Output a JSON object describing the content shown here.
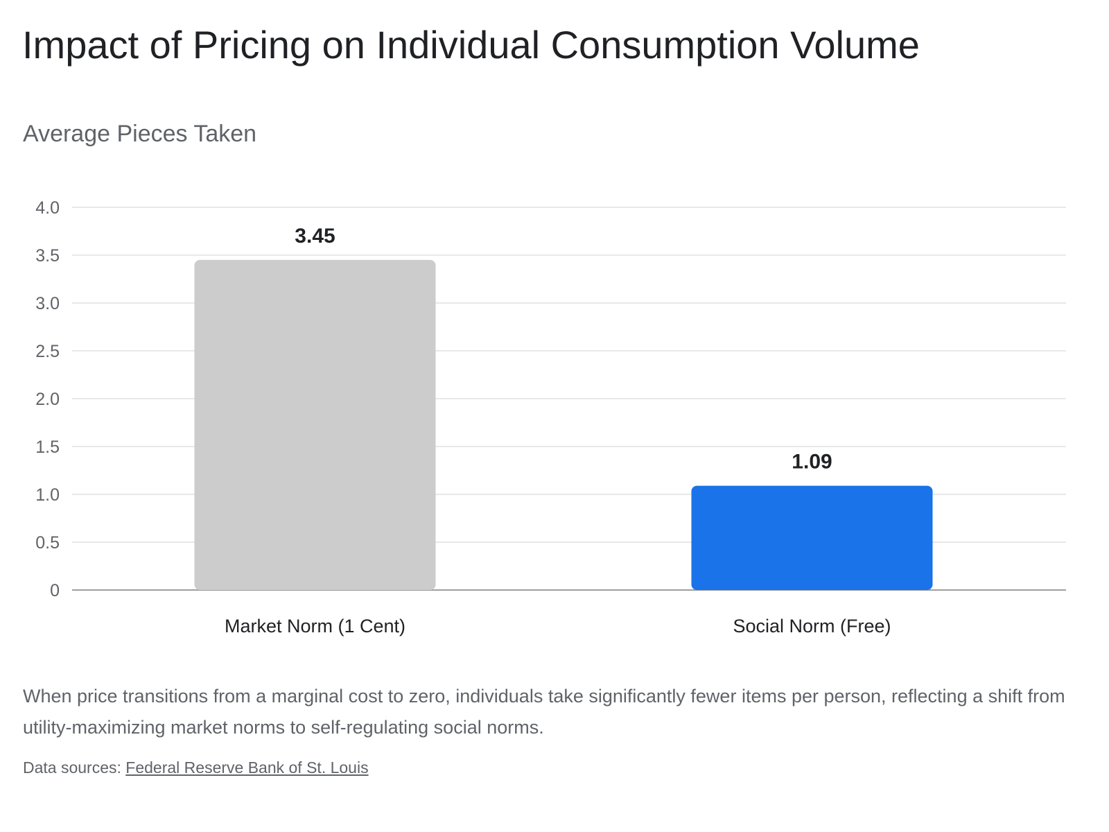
{
  "chart_data": {
    "type": "bar",
    "title": "Impact of Pricing on Individual Consumption Volume",
    "subtitle": "Average Pieces Taken",
    "categories": [
      "Market Norm (1 Cent)",
      "Social Norm (Free)"
    ],
    "values": [
      3.45,
      1.09
    ],
    "data_labels": [
      "3.45",
      "1.09"
    ],
    "bar_colors": [
      "#cccccc",
      "#1a73e8"
    ],
    "ylim": [
      0,
      4.0
    ],
    "yticks": [
      0,
      0.5,
      1.0,
      1.5,
      2.0,
      2.5,
      3.0,
      3.5,
      4.0
    ],
    "ytick_labels": [
      "0",
      "0.5",
      "1.0",
      "1.5",
      "2.0",
      "2.5",
      "3.0",
      "3.5",
      "4.0"
    ],
    "grid": true,
    "legend": "none",
    "xlabel": "",
    "ylabel": ""
  },
  "caption": "When price transitions from a marginal cost to zero, individuals take significantly fewer items per person, reflecting a shift from utility-maximizing market norms to self-regulating social norms.",
  "sources": {
    "label": "Data sources:",
    "link_text": "Federal Reserve Bank of St. Louis"
  },
  "colors": {
    "gridline": "#e0e0e0",
    "baseline": "#9e9e9e",
    "tick_label": "#5f6368",
    "data_label": "#202124"
  }
}
